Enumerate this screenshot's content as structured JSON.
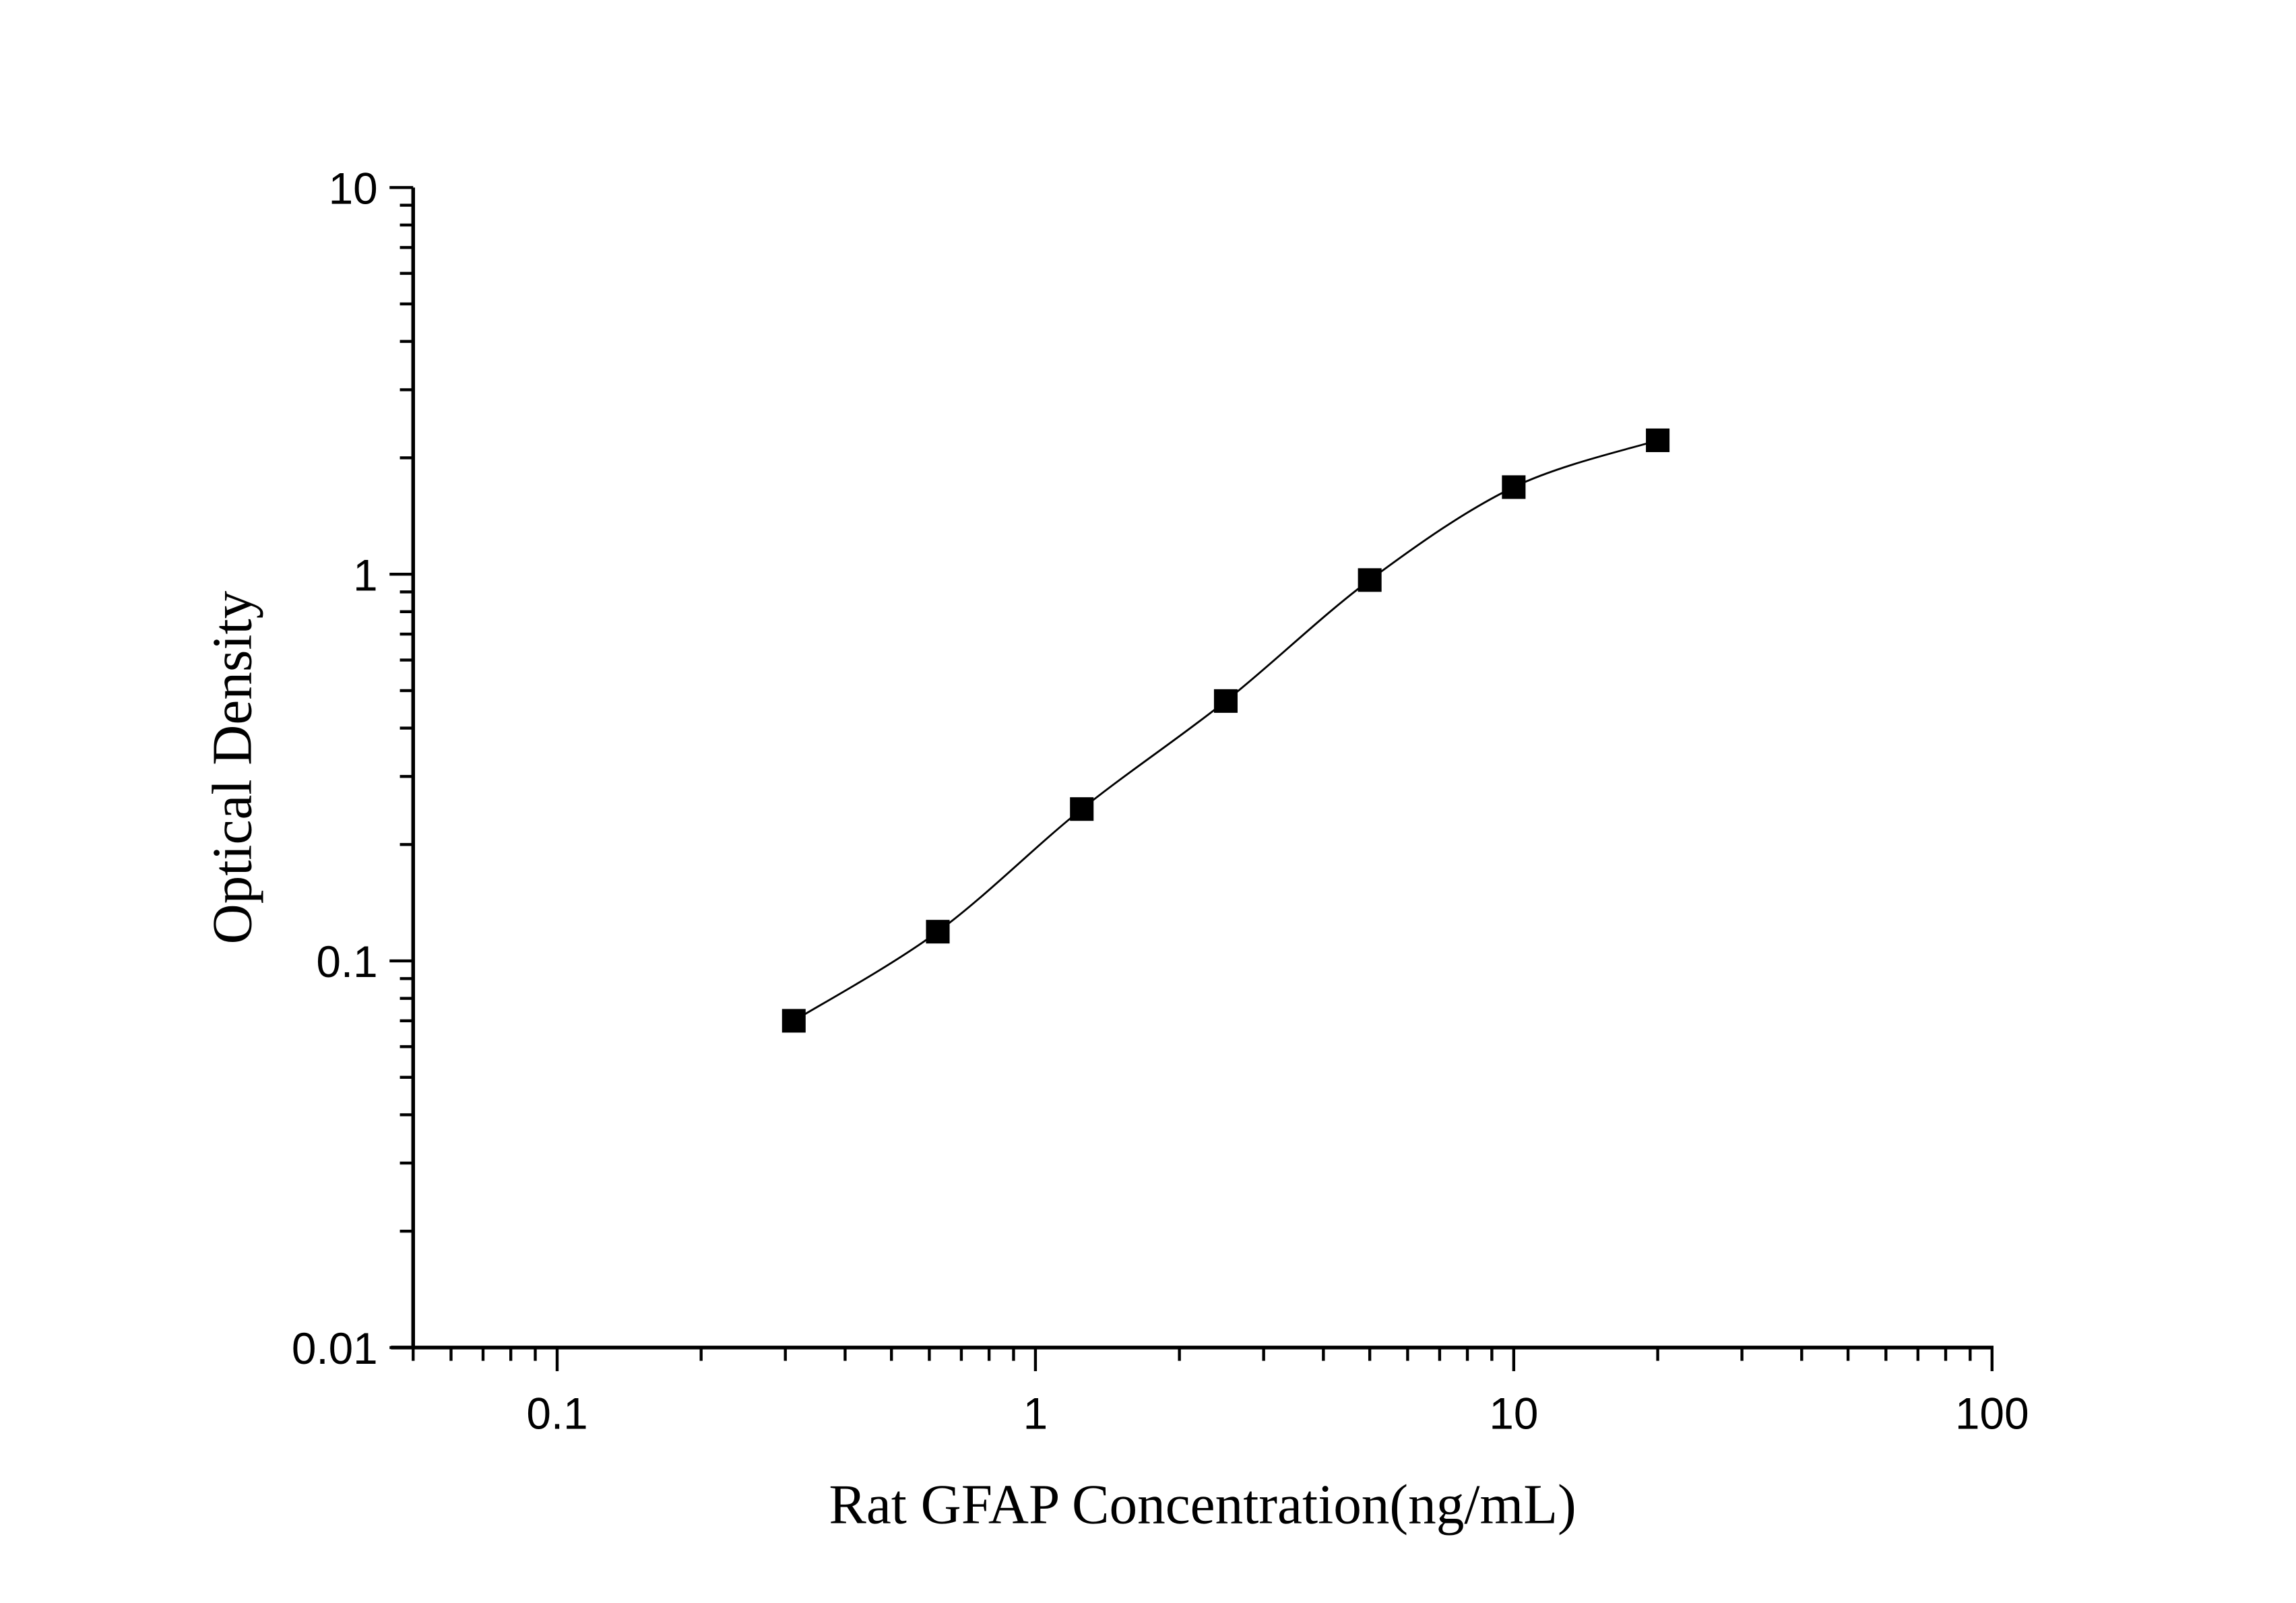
{
  "chart_data": {
    "type": "scatter",
    "title": "",
    "xlabel": "Rat GFAP Concentration(ng/mL)",
    "ylabel": "Optical Density",
    "x_scale": "log",
    "y_scale": "log",
    "xlim": [
      0.05,
      100
    ],
    "ylim": [
      0.01,
      10
    ],
    "x_ticks": [
      "0.1",
      "1",
      "10",
      "100"
    ],
    "y_ticks": [
      "0.01",
      "0.1",
      "1",
      "10"
    ],
    "grid": false,
    "legend": "none",
    "marker": "square",
    "color": "#000000",
    "fit_line": true,
    "series": [
      {
        "x": [
          0.3125,
          0.625,
          1.25,
          2.5,
          5,
          10,
          20
        ],
        "y": [
          0.07,
          0.119,
          0.247,
          0.47,
          0.966,
          1.68,
          2.22
        ]
      }
    ]
  }
}
